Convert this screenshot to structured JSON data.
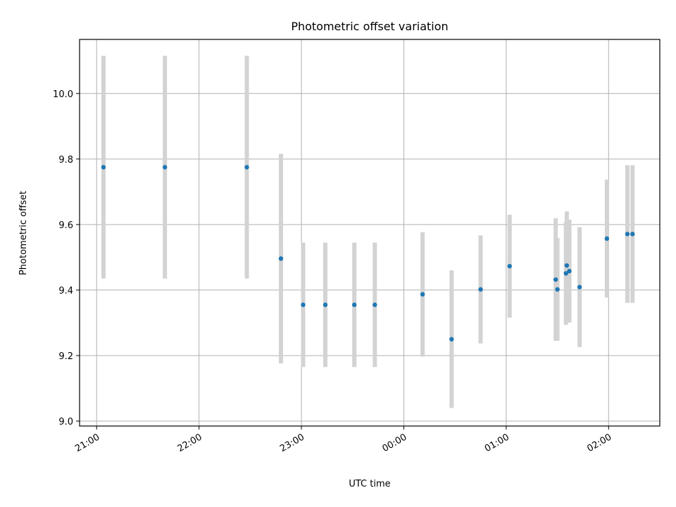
{
  "chart_data": {
    "type": "scatter",
    "title": "Photometric offset variation",
    "xlabel": "UTC time",
    "ylabel": "Photometric offset",
    "xlim": [
      "20:50",
      "02:30"
    ],
    "ylim": [
      8.985,
      10.165
    ],
    "xticks": [
      "21:00",
      "22:00",
      "23:00",
      "00:00",
      "01:00",
      "02:00"
    ],
    "yticks": [
      "9.0",
      "9.2",
      "9.4",
      "9.6",
      "9.8",
      "10.0"
    ],
    "grid": true,
    "colors": {
      "point": "#1f77b4",
      "errorbar": "#d3d3d3",
      "grid": "#b0b0b0"
    },
    "points": [
      {
        "x": "21:04",
        "y": 9.775,
        "err": 0.34
      },
      {
        "x": "21:40",
        "y": 9.775,
        "err": 0.34
      },
      {
        "x": "22:28",
        "y": 9.775,
        "err": 0.34
      },
      {
        "x": "22:48",
        "y": 9.496,
        "err": 0.32
      },
      {
        "x": "23:01",
        "y": 9.355,
        "err": 0.19
      },
      {
        "x": "23:14",
        "y": 9.355,
        "err": 0.19
      },
      {
        "x": "23:31",
        "y": 9.355,
        "err": 0.19
      },
      {
        "x": "23:43",
        "y": 9.355,
        "err": 0.19
      },
      {
        "x": "00:11",
        "y": 9.387,
        "err": 0.19
      },
      {
        "x": "00:28",
        "y": 9.25,
        "err": 0.21
      },
      {
        "x": "00:45",
        "y": 9.402,
        "err": 0.165
      },
      {
        "x": "01:02",
        "y": 9.473,
        "err": 0.157
      },
      {
        "x": "01:29",
        "y": 9.432,
        "err": 0.187
      },
      {
        "x": "01:30",
        "y": 9.402,
        "err": 0.157
      },
      {
        "x": "01:35",
        "y": 9.451,
        "err": 0.157
      },
      {
        "x": "01:35.5",
        "y": 9.475,
        "err": 0.165
      },
      {
        "x": "01:37",
        "y": 9.458,
        "err": 0.157
      },
      {
        "x": "01:43",
        "y": 9.409,
        "err": 0.183
      },
      {
        "x": "01:59",
        "y": 9.557,
        "err": 0.18
      },
      {
        "x": "02:11",
        "y": 9.571,
        "err": 0.21
      },
      {
        "x": "02:14",
        "y": 9.571,
        "err": 0.21
      }
    ]
  }
}
